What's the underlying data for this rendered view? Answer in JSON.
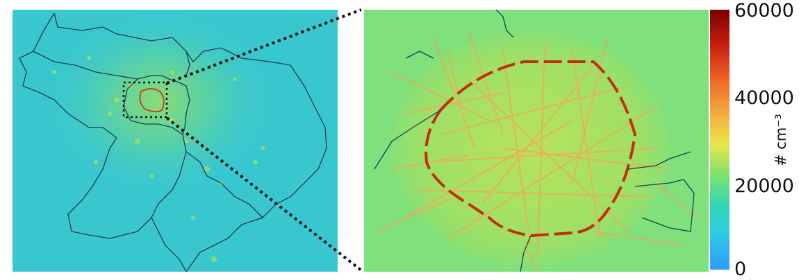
{
  "colorbar": {
    "ticks": [
      "60000",
      "40000",
      "20000",
      "0"
    ],
    "unit": "# cm⁻³",
    "colors": [
      "#2f9bff",
      "#2fcfe0",
      "#32d6b0",
      "#8be36a",
      "#e6e84a",
      "#f5b544",
      "#f06b2a",
      "#c82010",
      "#7a0000"
    ]
  },
  "overview_map": {
    "background": "#39c7cf"
  },
  "zoom_map": {
    "background": "#7fe07c",
    "road_color": "#f4a35a",
    "ring_road_color": "#c03010"
  }
}
